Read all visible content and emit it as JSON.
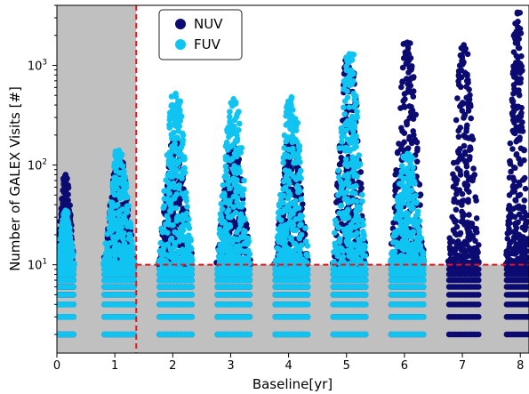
{
  "chart_data": {
    "type": "scatter",
    "xlabel": "Baseline[yr]",
    "ylabel": "Number of GALEX Visits [#]",
    "xlim": [
      0,
      8.15
    ],
    "ylim": [
      1.3,
      4000
    ],
    "y_scale": "log",
    "x_ticks": [
      0,
      1,
      2,
      3,
      4,
      5,
      6,
      7,
      8
    ],
    "x_tick_labels": [
      "0",
      "1",
      "2",
      "3",
      "4",
      "5",
      "6",
      "7",
      "8"
    ],
    "y_ticks": [
      10,
      100,
      1000
    ],
    "y_tick_labels": [
      "10^1",
      "10^2",
      "10^3"
    ],
    "threshold_visits": 10,
    "threshold_baseline": 1.37,
    "legend": {
      "placement": "top-left",
      "entries": [
        "NUV",
        "FUV"
      ]
    },
    "colors": {
      "NUV": "#0b0b72",
      "FUV": "#10c4f2",
      "excluded": "#c0c0c0",
      "threshold_line": "#e8141c"
    },
    "series": [
      {
        "name": "NUV",
        "clusters": [
          {
            "baseline": [
              0.0,
              0.3
            ],
            "visit_range": [
              2,
              80
            ],
            "peak_visits": 80
          },
          {
            "baseline": [
              0.8,
              1.35
            ],
            "visit_range": [
              2,
              110
            ],
            "peak_visits": 110
          },
          {
            "baseline": [
              1.75,
              2.35
            ],
            "visit_range": [
              2,
              170
            ],
            "peak_visits": 170
          },
          {
            "baseline": [
              2.75,
              3.35
            ],
            "visit_range": [
              2,
              160
            ],
            "peak_visits": 160
          },
          {
            "baseline": [
              3.75,
              4.35
            ],
            "visit_range": [
              2,
              180
            ],
            "peak_visits": 180
          },
          {
            "baseline": [
              4.75,
              5.35
            ],
            "visit_range": [
              2,
              1200
            ],
            "peak_visits": 1200
          },
          {
            "baseline": [
              5.75,
              6.35
            ],
            "visit_range": [
              2,
              1700
            ],
            "peak_visits": 1700
          },
          {
            "baseline": [
              6.75,
              7.3
            ],
            "visit_range": [
              2,
              1600
            ],
            "peak_visits": 1600
          },
          {
            "baseline": [
              7.75,
              8.15
            ],
            "visit_range": [
              2,
              3400
            ],
            "peak_visits": 3400
          }
        ]
      },
      {
        "name": "FUV",
        "clusters": [
          {
            "baseline": [
              0.0,
              0.3
            ],
            "visit_range": [
              2,
              35
            ],
            "peak_visits": 35
          },
          {
            "baseline": [
              0.8,
              1.35
            ],
            "visit_range": [
              2,
              140
            ],
            "peak_visits": 140
          },
          {
            "baseline": [
              1.75,
              2.35
            ],
            "visit_range": [
              2,
              520
            ],
            "peak_visits": 520
          },
          {
            "baseline": [
              2.75,
              3.35
            ],
            "visit_range": [
              2,
              460
            ],
            "peak_visits": 460
          },
          {
            "baseline": [
              3.75,
              4.35
            ],
            "visit_range": [
              2,
              480
            ],
            "peak_visits": 480
          },
          {
            "baseline": [
              4.75,
              5.35
            ],
            "visit_range": [
              2,
              1300
            ],
            "peak_visits": 1300
          },
          {
            "baseline": [
              5.75,
              6.35
            ],
            "visit_range": [
              2,
              130
            ],
            "peak_visits": 130
          }
        ]
      }
    ]
  }
}
